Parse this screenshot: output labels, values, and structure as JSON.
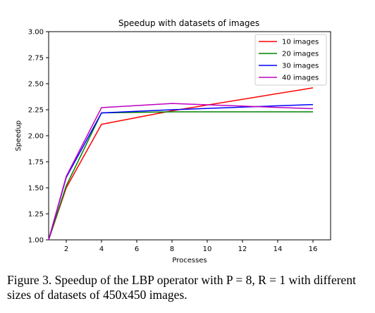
{
  "caption": {
    "text": "Figure 3. Speedup of the LBP operator with P = 8, R = 1 with different sizes of datasets of 450x450 images."
  },
  "chart_data": {
    "type": "line",
    "title": "Speedup with datasets of images",
    "xlabel": "Processes",
    "ylabel": "Speedup",
    "xlim": [
      1,
      17
    ],
    "ylim": [
      1.0,
      3.0
    ],
    "xticks": [
      2,
      4,
      6,
      8,
      10,
      12,
      14,
      16
    ],
    "yticks": [
      "1.00",
      "1.25",
      "1.50",
      "1.75",
      "2.00",
      "2.25",
      "2.50",
      "2.75",
      "3.00"
    ],
    "grid": false,
    "legend_position": "top-right",
    "x": [
      1,
      2,
      4,
      8,
      16
    ],
    "series": [
      {
        "name": "10 images",
        "color": "#ff0000",
        "values": [
          1.0,
          1.5,
          2.11,
          2.24,
          2.46
        ]
      },
      {
        "name": "20 images",
        "color": "#008000",
        "values": [
          1.0,
          1.52,
          2.22,
          2.23,
          2.23
        ]
      },
      {
        "name": "30 images",
        "color": "#0000ff",
        "values": [
          1.0,
          1.6,
          2.22,
          2.25,
          2.3
        ]
      },
      {
        "name": "40 images",
        "color": "#bf00bf",
        "values": [
          1.0,
          1.61,
          2.27,
          2.31,
          2.26
        ]
      }
    ]
  }
}
